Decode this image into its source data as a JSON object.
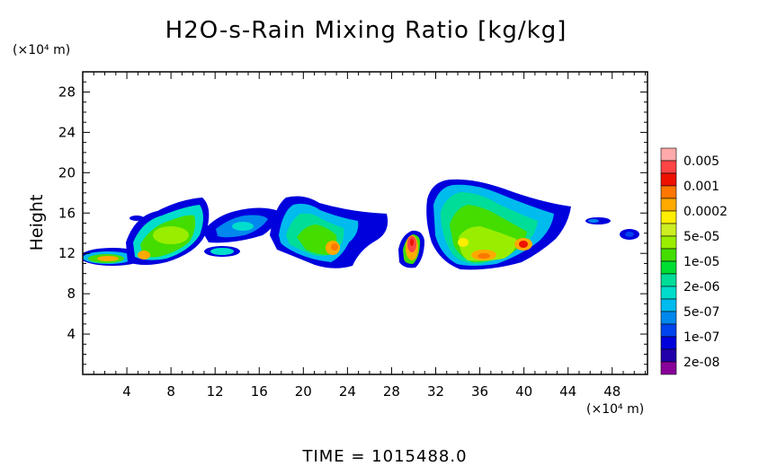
{
  "chart_data": {
    "type": "heatmap",
    "title": "H2O-s-Rain Mixing Ratio [kg/kg]",
    "ylabel": "Height",
    "yunit": "(×10⁴ m)",
    "xunit": "(×10⁴ m)",
    "xlim": [
      0,
      51.2
    ],
    "ylim": [
      0,
      30
    ],
    "xticks": [
      "4",
      "8",
      "12",
      "16",
      "20",
      "24",
      "28",
      "32",
      "36",
      "40",
      "44",
      "48"
    ],
    "yticks": [
      "4",
      "8",
      "12",
      "16",
      "20",
      "24",
      "28"
    ],
    "colorbar": {
      "labels": [
        "0.005",
        "0.001",
        "0.0002",
        "5e-05",
        "1e-05",
        "2e-06",
        "5e-07",
        "1e-07",
        "2e-08"
      ],
      "colors": [
        "#ffaaaa",
        "#ff4444",
        "#ee1100",
        "#ff7700",
        "#ffaa00",
        "#ffee00",
        "#ccee22",
        "#99ee00",
        "#44dd00",
        "#00dd33",
        "#00dd99",
        "#00ddcc",
        "#00bbee",
        "#0088ee",
        "#0044ee",
        "#0000dd",
        "#2200aa",
        "#880099"
      ]
    },
    "footer": "TIME  =  1015488.0"
  }
}
